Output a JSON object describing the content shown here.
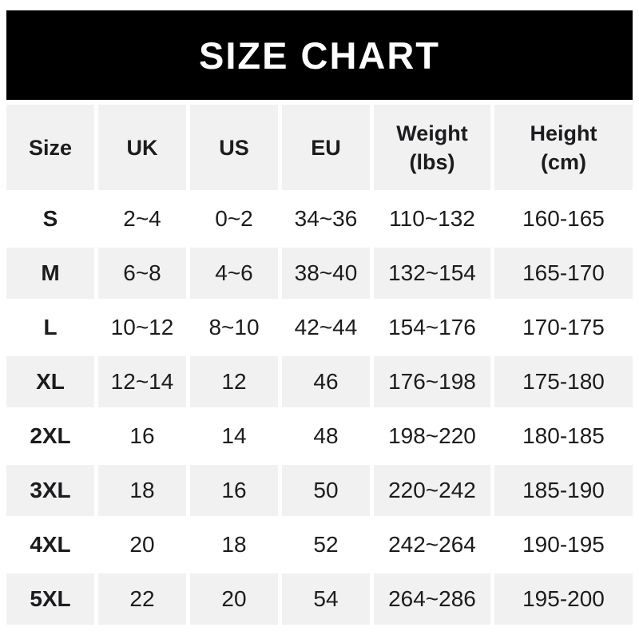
{
  "banner": {
    "title": "SIZE CHART",
    "bg_color": "#000000",
    "text_color": "#ffffff"
  },
  "colors": {
    "row_alt_bg": "#f1f1f2",
    "row_bg": "#ffffff",
    "text": "#1c1c1e"
  },
  "table": {
    "columns": [
      {
        "label": "Size",
        "sub": ""
      },
      {
        "label": "UK",
        "sub": ""
      },
      {
        "label": "US",
        "sub": ""
      },
      {
        "label": "EU",
        "sub": ""
      },
      {
        "label": "Weight",
        "sub": "(lbs)"
      },
      {
        "label": "Height",
        "sub": "(cm)"
      }
    ],
    "rows": [
      {
        "size": "S",
        "uk": "2~4",
        "us": "0~2",
        "eu": "34~36",
        "weight": "110~132",
        "height": "160-165"
      },
      {
        "size": "M",
        "uk": "6~8",
        "us": "4~6",
        "eu": "38~40",
        "weight": "132~154",
        "height": "165-170"
      },
      {
        "size": "L",
        "uk": "10~12",
        "us": "8~10",
        "eu": "42~44",
        "weight": "154~176",
        "height": "170-175"
      },
      {
        "size": "XL",
        "uk": "12~14",
        "us": "12",
        "eu": "46",
        "weight": "176~198",
        "height": "175-180"
      },
      {
        "size": "2XL",
        "uk": "16",
        "us": "14",
        "eu": "48",
        "weight": "198~220",
        "height": "180-185"
      },
      {
        "size": "3XL",
        "uk": "18",
        "us": "16",
        "eu": "50",
        "weight": "220~242",
        "height": "185-190"
      },
      {
        "size": "4XL",
        "uk": "20",
        "us": "18",
        "eu": "52",
        "weight": "242~264",
        "height": "190-195"
      },
      {
        "size": "5XL",
        "uk": "22",
        "us": "20",
        "eu": "54",
        "weight": "264~286",
        "height": "195-200"
      }
    ]
  },
  "chart_data": {
    "type": "table",
    "title": "SIZE CHART",
    "columns": [
      "Size",
      "UK",
      "US",
      "EU",
      "Weight (lbs)",
      "Height (cm)"
    ],
    "rows": [
      [
        "S",
        "2~4",
        "0~2",
        "34~36",
        "110~132",
        "160-165"
      ],
      [
        "M",
        "6~8",
        "4~6",
        "38~40",
        "132~154",
        "165-170"
      ],
      [
        "L",
        "10~12",
        "8~10",
        "42~44",
        "154~176",
        "170-175"
      ],
      [
        "XL",
        "12~14",
        "12",
        "46",
        "176~198",
        "175-180"
      ],
      [
        "2XL",
        "16",
        "14",
        "48",
        "198~220",
        "180-185"
      ],
      [
        "3XL",
        "18",
        "16",
        "50",
        "220~242",
        "185-190"
      ],
      [
        "4XL",
        "20",
        "18",
        "52",
        "242~264",
        "190-195"
      ],
      [
        "5XL",
        "22",
        "20",
        "54",
        "264~286",
        "195-200"
      ]
    ],
    "layout": {
      "header_bg": "#f1f1f2",
      "alternating_rows": true,
      "grid": "off"
    }
  }
}
